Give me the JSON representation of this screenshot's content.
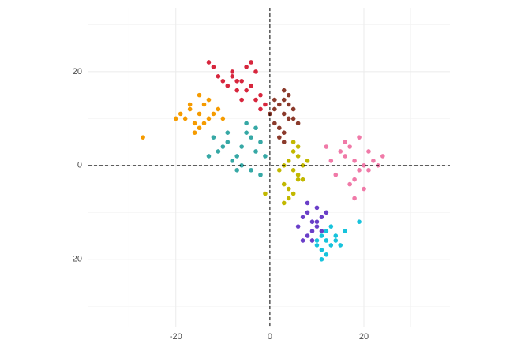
{
  "chart_data": {
    "type": "scatter",
    "xlim": [
      -38.6,
      38.3
    ],
    "ylim": [
      -34.5,
      33.6
    ],
    "xticks": [
      -20,
      0,
      20
    ],
    "yticks": [
      -20,
      0,
      20
    ],
    "xgrid_minor": [
      -30,
      -10,
      10,
      30
    ],
    "ygrid_minor": [
      -30,
      -10,
      10,
      30
    ],
    "grid": true,
    "hline": 0,
    "vline": 0,
    "series": [
      {
        "color": "#d7263d",
        "x": [
          -6,
          -8,
          -4,
          -10,
          -3,
          -7,
          -5,
          -9,
          -2,
          -11,
          -6,
          -4,
          -8,
          -5,
          -12,
          -1,
          -7,
          -3,
          -13,
          -2
        ],
        "y": [
          18,
          19,
          17,
          18,
          20,
          16,
          21,
          17,
          15,
          19,
          14,
          22,
          20,
          16,
          21,
          13,
          18,
          14,
          22,
          12
        ]
      },
      {
        "color": "#f59b00",
        "x": [
          -15,
          -17,
          -13,
          -16,
          -14,
          -18,
          -12,
          -15,
          -19,
          -13,
          -16,
          -11,
          -14,
          -17,
          -20,
          -10,
          -15,
          -27
        ],
        "y": [
          11,
          12,
          10,
          9,
          13,
          10,
          11,
          8,
          11,
          14,
          7,
          12,
          9,
          13,
          10,
          10,
          15,
          6
        ]
      },
      {
        "color": "#36a8a5",
        "x": [
          -6,
          -9,
          -3,
          -7,
          -4,
          -10,
          -2,
          -8,
          -5,
          -11,
          -1,
          -6,
          -9,
          -4,
          -12,
          -3,
          -7,
          -5,
          -13,
          -2
        ],
        "y": [
          4,
          5,
          3,
          2,
          6,
          4,
          5,
          1,
          7,
          3,
          2,
          0,
          7,
          -1,
          6,
          8,
          -1,
          9,
          2,
          -2
        ]
      },
      {
        "color": "#8b3a2b",
        "x": [
          3,
          2,
          4,
          1,
          3,
          5,
          2,
          4,
          0,
          3,
          5,
          1,
          2,
          4,
          3,
          6,
          1,
          3
        ],
        "y": [
          11,
          13,
          10,
          9,
          14,
          12,
          8,
          15,
          11,
          7,
          10,
          12,
          6,
          13,
          16,
          9,
          14,
          5
        ]
      },
      {
        "color": "#c2b800",
        "x": [
          5,
          4,
          6,
          3,
          5,
          7,
          4,
          6,
          2,
          5,
          7,
          3,
          6,
          4,
          8,
          5,
          3,
          6,
          -1
        ],
        "y": [
          -1,
          1,
          -2,
          0,
          3,
          -3,
          -5,
          2,
          -1,
          -6,
          0,
          -4,
          4,
          -7,
          1,
          5,
          -8,
          -3,
          -6
        ]
      },
      {
        "color": "#f07aa8",
        "x": [
          18,
          16,
          20,
          15,
          19,
          17,
          22,
          14,
          21,
          18,
          16,
          23,
          13,
          20,
          17,
          19,
          24,
          12,
          18,
          21
        ],
        "y": [
          1,
          2,
          0,
          3,
          -1,
          4,
          1,
          -2,
          3,
          -3,
          5,
          0,
          1,
          -5,
          -4,
          6,
          2,
          4,
          -7,
          -1
        ]
      },
      {
        "color": "#6a3fc8",
        "x": [
          9,
          8,
          10,
          7,
          9,
          11,
          8,
          10,
          6,
          9,
          11,
          8,
          10,
          7,
          12
        ],
        "y": [
          -12,
          -10,
          -13,
          -11,
          -14,
          -11,
          -15,
          -9,
          -13,
          -16,
          -14,
          -8,
          -12,
          -16,
          -10
        ]
      },
      {
        "color": "#17c3dc",
        "x": [
          12,
          11,
          13,
          10,
          12,
          14,
          11,
          13,
          15,
          12,
          10,
          14,
          16,
          11,
          19
        ],
        "y": [
          -16,
          -15,
          -17,
          -16,
          -14,
          -15,
          -18,
          -13,
          -17,
          -19,
          -17,
          -16,
          -14,
          -20,
          -12
        ]
      }
    ]
  }
}
